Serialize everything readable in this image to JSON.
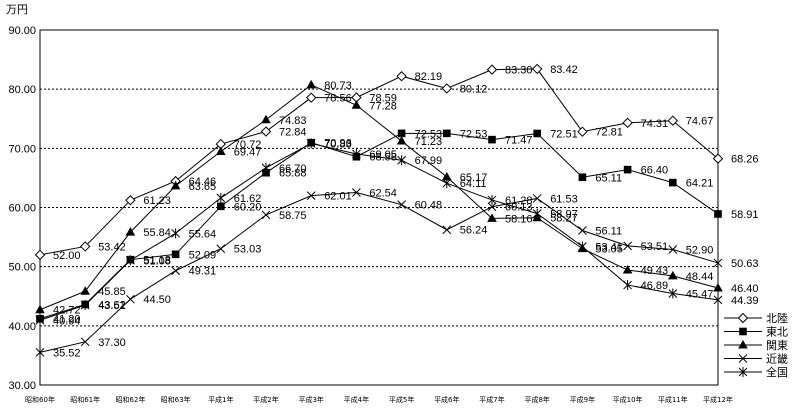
{
  "chart_data": {
    "type": "line",
    "unit_label": "万円",
    "categories": [
      "昭和60年",
      "昭和61年",
      "昭和62年",
      "昭和63年",
      "平成1年",
      "平成2年",
      "平成3年",
      "平成4年",
      "平成5年",
      "平成6年",
      "平成7年",
      "平成8年",
      "平成9年",
      "平成10年",
      "平成11年",
      "平成12年"
    ],
    "ylim": [
      30,
      90
    ],
    "yticks": [
      "30.00",
      "40.00",
      "50.00",
      "60.00",
      "70.00",
      "80.00",
      "90.00"
    ],
    "grid": true,
    "legend_position": "right",
    "series": [
      {
        "name": "北陸",
        "marker": "diamond-open",
        "values": [
          52.0,
          53.42,
          61.23,
          64.46,
          70.72,
          72.84,
          78.56,
          78.59,
          82.19,
          80.12,
          83.3,
          83.42,
          72.81,
          74.31,
          74.67,
          68.26
        ]
      },
      {
        "name": "東北",
        "marker": "square-filled",
        "values": [
          41.2,
          43.62,
          51.18,
          52.09,
          60.2,
          65.88,
          70.96,
          68.58,
          72.53,
          72.53,
          71.47,
          72.51,
          65.11,
          66.4,
          64.21,
          58.91
        ]
      },
      {
        "name": "関東",
        "marker": "triangle-filled",
        "values": [
          42.72,
          45.85,
          55.84,
          63.65,
          69.47,
          74.83,
          80.73,
          77.28,
          71.23,
          65.17,
          58.16,
          58.27,
          53.05,
          49.43,
          48.44,
          46.4
        ]
      },
      {
        "name": "近畿",
        "marker": "x",
        "values": [
          35.52,
          37.3,
          44.5,
          49.31,
          53.03,
          58.75,
          62.01,
          62.54,
          60.48,
          56.24,
          60.13,
          61.53,
          56.11,
          53.51,
          52.9,
          50.63
        ]
      },
      {
        "name": "全国",
        "marker": "asterisk",
        "values": [
          40.94,
          43.51,
          51.08,
          55.64,
          61.62,
          66.7,
          70.83,
          69.05,
          67.99,
          64.11,
          61.28,
          58.97,
          53.41,
          46.89,
          45.47,
          44.39
        ]
      }
    ],
    "data_labels": [
      {
        "text": "52.00",
        "series": 0,
        "index": 0
      },
      {
        "text": "53.42",
        "series": 0,
        "index": 1
      },
      {
        "text": "61.23",
        "series": 0,
        "index": 2
      },
      {
        "text": "64.46",
        "series": 0,
        "index": 3
      },
      {
        "text": "70.72",
        "series": 0,
        "index": 4
      },
      {
        "text": "72.84",
        "series": 0,
        "index": 5
      },
      {
        "text": "78.56",
        "series": 0,
        "index": 6
      },
      {
        "text": "78.59",
        "series": 0,
        "index": 7
      },
      {
        "text": "82.19",
        "series": 0,
        "index": 8
      },
      {
        "text": "80.12",
        "series": 0,
        "index": 9
      },
      {
        "text": "83.30",
        "series": 0,
        "index": 10
      },
      {
        "text": "83.42",
        "series": 0,
        "index": 11
      },
      {
        "text": "72.81",
        "series": 0,
        "index": 12
      },
      {
        "text": "74.31",
        "series": 0,
        "index": 13
      },
      {
        "text": "74.67",
        "series": 0,
        "index": 14
      },
      {
        "text": "68.26",
        "series": 0,
        "index": 15
      },
      {
        "text": "41.20",
        "series": 1,
        "index": 0
      },
      {
        "text": "43.62",
        "series": 1,
        "index": 1
      },
      {
        "text": "51.18",
        "series": 1,
        "index": 2
      },
      {
        "text": "52.09",
        "series": 1,
        "index": 3
      },
      {
        "text": "60.20",
        "series": 1,
        "index": 4
      },
      {
        "text": "65.88",
        "series": 1,
        "index": 5
      },
      {
        "text": "70.96",
        "series": 1,
        "index": 6
      },
      {
        "text": "68.58",
        "series": 1,
        "index": 7
      },
      {
        "text": "72.53",
        "series": 1,
        "index": 8
      },
      {
        "text": "72.53",
        "series": 1,
        "index": 9
      },
      {
        "text": "71.47",
        "series": 1,
        "index": 10
      },
      {
        "text": "72.51",
        "series": 1,
        "index": 11
      },
      {
        "text": "65.11",
        "series": 1,
        "index": 12
      },
      {
        "text": "66.40",
        "series": 1,
        "index": 13
      },
      {
        "text": "64.21",
        "series": 1,
        "index": 14
      },
      {
        "text": "58.91",
        "series": 1,
        "index": 15
      },
      {
        "text": "42.72",
        "series": 2,
        "index": 0
      },
      {
        "text": "45.85",
        "series": 2,
        "index": 1
      },
      {
        "text": "55.84",
        "series": 2,
        "index": 2
      },
      {
        "text": "63.65",
        "series": 2,
        "index": 3
      },
      {
        "text": "69.47",
        "series": 2,
        "index": 4
      },
      {
        "text": "74.83",
        "series": 2,
        "index": 5
      },
      {
        "text": "80.73",
        "series": 2,
        "index": 6
      },
      {
        "text": "77.28",
        "series": 2,
        "index": 7
      },
      {
        "text": "71.23",
        "series": 2,
        "index": 8
      },
      {
        "text": "65.17",
        "series": 2,
        "index": 9
      },
      {
        "text": "58.16",
        "series": 2,
        "index": 10
      },
      {
        "text": "58.27",
        "series": 2,
        "index": 11
      },
      {
        "text": "53.05",
        "series": 2,
        "index": 12
      },
      {
        "text": "49.43",
        "series": 2,
        "index": 13
      },
      {
        "text": "48.44",
        "series": 2,
        "index": 14
      },
      {
        "text": "46.40",
        "series": 2,
        "index": 15
      },
      {
        "text": "35.52",
        "series": 3,
        "index": 0
      },
      {
        "text": "37.30",
        "series": 3,
        "index": 1
      },
      {
        "text": "44.50",
        "series": 3,
        "index": 2
      },
      {
        "text": "49.31",
        "series": 3,
        "index": 3
      },
      {
        "text": "53.03",
        "series": 3,
        "index": 4
      },
      {
        "text": "58.75",
        "series": 3,
        "index": 5
      },
      {
        "text": "62.01",
        "series": 3,
        "index": 6
      },
      {
        "text": "62.54",
        "series": 3,
        "index": 7
      },
      {
        "text": "60.48",
        "series": 3,
        "index": 8
      },
      {
        "text": "56.24",
        "series": 3,
        "index": 9
      },
      {
        "text": "60.13",
        "series": 3,
        "index": 10
      },
      {
        "text": "61.53",
        "series": 3,
        "index": 11
      },
      {
        "text": "56.11",
        "series": 3,
        "index": 12
      },
      {
        "text": "53.51",
        "series": 3,
        "index": 13
      },
      {
        "text": "52.90",
        "series": 3,
        "index": 14
      },
      {
        "text": "50.63",
        "series": 3,
        "index": 15
      },
      {
        "text": "40.94",
        "series": 4,
        "index": 0
      },
      {
        "text": "43.51",
        "series": 4,
        "index": 1
      },
      {
        "text": "51.08",
        "series": 4,
        "index": 2
      },
      {
        "text": "55.64",
        "series": 4,
        "index": 3
      },
      {
        "text": "61.62",
        "series": 4,
        "index": 4
      },
      {
        "text": "66.70",
        "series": 4,
        "index": 5
      },
      {
        "text": "70.83",
        "series": 4,
        "index": 6
      },
      {
        "text": "69.05",
        "series": 4,
        "index": 7
      },
      {
        "text": "67.99",
        "series": 4,
        "index": 8
      },
      {
        "text": "64.11",
        "series": 4,
        "index": 9
      },
      {
        "text": "61.28",
        "series": 4,
        "index": 10
      },
      {
        "text": "58.97",
        "series": 4,
        "index": 11
      },
      {
        "text": "53.41",
        "series": 4,
        "index": 12
      },
      {
        "text": "46.89",
        "series": 4,
        "index": 13
      },
      {
        "text": "45.47",
        "series": 4,
        "index": 14
      },
      {
        "text": "44.39",
        "series": 4,
        "index": 15
      }
    ],
    "colors": {
      "line": "#000000",
      "grid": "#000000",
      "background": "#ffffff"
    }
  }
}
